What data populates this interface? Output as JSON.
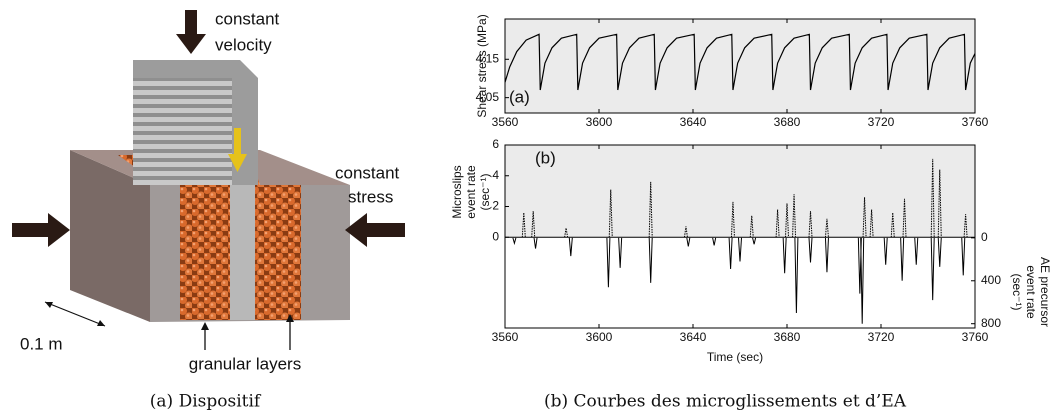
{
  "diagram": {
    "velocity_label": [
      "constant",
      "velocity"
    ],
    "stress_label": [
      "constant",
      "stress"
    ],
    "scale_label": "0.1 m",
    "layers_label": "granular layers"
  },
  "captions": [
    "(a) Dispositif",
    "(b) Courbes des microglissements et d’EA"
  ],
  "chart_data": [
    {
      "type": "line",
      "panel_label": "(a)",
      "ylabel": "Shear stress (MPa)",
      "background": "#ebebeb",
      "color": "#000000",
      "x": [
        3560,
        3562,
        3565,
        3569,
        3574.5,
        3575,
        3577,
        3580,
        3584,
        3590.5,
        3591,
        3593,
        3596,
        3600,
        3607.5,
        3608,
        3610,
        3613,
        3617,
        3623.5,
        3624,
        3626,
        3629,
        3633,
        3640.5,
        3641,
        3643,
        3646,
        3650,
        3656.5,
        3657,
        3659,
        3662,
        3666,
        3673.5,
        3674,
        3676,
        3679,
        3683,
        3689.5,
        3690,
        3692,
        3695,
        3699,
        3706.5,
        3707,
        3709,
        3712,
        3716,
        3722.5,
        3723,
        3725,
        3728,
        3732,
        3739.5,
        3740,
        3742,
        3745,
        3749,
        3755.5,
        3756,
        3758,
        3760
      ],
      "values": [
        4.09,
        4.13,
        4.17,
        4.2,
        4.215,
        4.07,
        4.14,
        4.18,
        4.205,
        4.215,
        4.07,
        4.14,
        4.18,
        4.205,
        4.215,
        4.07,
        4.14,
        4.18,
        4.205,
        4.215,
        4.07,
        4.14,
        4.18,
        4.205,
        4.215,
        4.07,
        4.14,
        4.18,
        4.205,
        4.215,
        4.07,
        4.14,
        4.18,
        4.205,
        4.215,
        4.07,
        4.14,
        4.18,
        4.205,
        4.215,
        4.07,
        4.14,
        4.18,
        4.205,
        4.215,
        4.07,
        4.14,
        4.18,
        4.205,
        4.215,
        4.07,
        4.14,
        4.18,
        4.205,
        4.215,
        4.07,
        4.14,
        4.18,
        4.205,
        4.215,
        4.07,
        4.14,
        4.165
      ],
      "xlim": [
        3560,
        3760
      ],
      "xticks": [
        3560,
        3600,
        3640,
        3680,
        3720,
        3760
      ],
      "ylim": [
        4.01,
        4.255
      ],
      "yticks": [
        4.05,
        4.15
      ]
    },
    {
      "type": "spike",
      "panel_label": "(b)",
      "ylabel": [
        "Microslips",
        "event rate",
        "(sec⁻¹)"
      ],
      "y2label": [
        "AE precursor",
        "event rate",
        "(sec⁻¹)"
      ],
      "xlabel": "Time (sec)",
      "background": "#ebebeb",
      "series": [
        {
          "axis": "y",
          "color": "#000000",
          "dotted": true,
          "x": [
            3568,
            3572,
            3586,
            3605,
            3622,
            3637,
            3657,
            3665,
            3676,
            3680,
            3683,
            3690,
            3697,
            3713,
            3716,
            3725,
            3730,
            3742,
            3745,
            3756
          ],
          "values": [
            1.6,
            1.7,
            0.6,
            3.1,
            3.6,
            0.7,
            2.3,
            1.4,
            1.8,
            2.2,
            2.8,
            1.7,
            1.2,
            2.6,
            1.8,
            1.6,
            2.5,
            5.1,
            4.4,
            1.5
          ]
        },
        {
          "axis": "y2",
          "color": "#000000",
          "dotted": false,
          "x": [
            3564,
            3573,
            3588,
            3604,
            3609,
            3622,
            3638,
            3649,
            3656,
            3660,
            3666,
            3679,
            3684,
            3690,
            3697,
            3711,
            3712,
            3722,
            3729,
            3735,
            3742,
            3745,
            3755
          ],
          "values": [
            50,
            100,
            170,
            460,
            280,
            420,
            80,
            70,
            290,
            220,
            60,
            330,
            700,
            230,
            320,
            520,
            800,
            250,
            400,
            250,
            580,
            270,
            350
          ]
        }
      ],
      "xlim": [
        3560,
        3760
      ],
      "xticks": [
        3560,
        3600,
        3640,
        3680,
        3720,
        3760
      ],
      "ylim": [
        -5.9,
        6
      ],
      "yticks": [
        0,
        2,
        4,
        6
      ],
      "y2lim": [
        840,
        -865
      ],
      "y2ticks": [
        0,
        400,
        800
      ]
    }
  ]
}
